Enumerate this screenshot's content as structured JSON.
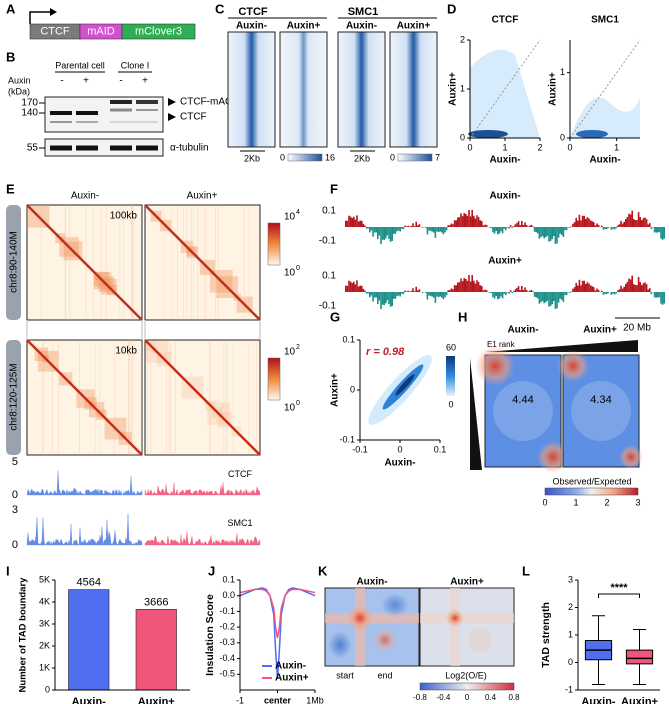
{
  "panel_labels": [
    "A",
    "B",
    "C",
    "D",
    "E",
    "F",
    "G",
    "H",
    "I",
    "J",
    "K",
    "L"
  ],
  "A": {
    "parts": [
      "CTCF",
      "mAID",
      "mClover3"
    ]
  },
  "B": {
    "groups": [
      "Parental cell",
      "Clone I"
    ],
    "auxin_label": "Auxin",
    "auxin": [
      "-",
      "+",
      "-",
      "+"
    ],
    "kda_label": "(kDa)",
    "markers": [
      "170",
      "140",
      "55"
    ],
    "bands": [
      "CTCF-mAC",
      "CTCF",
      "α-tubulin"
    ]
  },
  "C": {
    "proteins": [
      "CTCF",
      "SMC1"
    ],
    "conditions": [
      "Auxin-",
      "Auxin+",
      "Auxin-",
      "Auxin+"
    ],
    "scale": [
      "2Kb",
      "2Kb"
    ],
    "colorbars": [
      [
        "0",
        "16"
      ],
      [
        "0",
        "7"
      ]
    ]
  },
  "D": {
    "titles": [
      "CTCF",
      "SMC1"
    ],
    "y_label": "Auxin+",
    "x_label": "Auxin-",
    "plots": [
      {
        "xticks": [
          "0",
          "1",
          "2"
        ],
        "yticks": [
          "0",
          "1",
          "2"
        ]
      },
      {
        "xticks": [
          "0",
          "1"
        ],
        "yticks": [
          "0",
          "1"
        ]
      }
    ]
  },
  "E": {
    "conditions": [
      "Auxin-",
      "Auxin+"
    ],
    "resolutions": [
      "100kb",
      "10kb"
    ],
    "regions": [
      "chr8:90-140M",
      "chr8:120-125M"
    ],
    "colorbars": [
      {
        "base": "10",
        "top_exp": "4",
        "bottom_exp": "0"
      },
      {
        "base": "10",
        "top_exp": "2",
        "bottom_exp": "0"
      }
    ],
    "tracks": [
      {
        "name": "CTCF",
        "ticks": [
          "5",
          "0"
        ]
      },
      {
        "name": "SMC1",
        "ticks": [
          "3",
          "0"
        ]
      }
    ]
  },
  "F": {
    "tracks": [
      {
        "name": "Auxin-",
        "ticks": [
          "0.1",
          "-0.1"
        ]
      },
      {
        "name": "Auxin+",
        "ticks": [
          "0.1",
          "-0.1"
        ]
      }
    ],
    "scale": "20 Mb"
  },
  "G": {
    "r_label": "r = 0.98",
    "x_label": "Auxin-",
    "y_label": "Auxin+",
    "xticks": [
      "-0.1",
      "0",
      "0.1"
    ],
    "yticks": [
      "0.1",
      "0",
      "-0.1"
    ],
    "colorbar": [
      "60",
      "0"
    ]
  },
  "H": {
    "conditions": [
      "Auxin-",
      "Auxin+"
    ],
    "rank_label": "E1 rank",
    "strengths": [
      "4.44",
      "4.34"
    ],
    "colorbar_label": "Observed/Expected",
    "colorbar_ticks": [
      "0",
      "1",
      "2",
      "3"
    ]
  },
  "K": {
    "conditions": [
      "Auxin-",
      "Auxin+"
    ],
    "x_labels": [
      "start",
      "end"
    ],
    "colorbar_label": "Log2(O/E)",
    "colorbar_ticks": [
      "-0.8",
      "-0.4",
      "0",
      "0.4",
      "0.8"
    ]
  },
  "chart_data": [
    {
      "type": "bar",
      "y_label": "Number of TAD boundary",
      "categories": [
        "Auxin-",
        "Auxin+"
      ],
      "values": [
        4564,
        3666
      ],
      "colors": [
        "#4f6ef0",
        "#f0567a"
      ],
      "ylim": [
        0,
        5000
      ],
      "yticks": [
        0,
        {
          "value": 1000,
          "label": "1K"
        },
        {
          "value": 2000,
          "label": "2K"
        },
        {
          "value": 3000,
          "label": "3K"
        },
        {
          "value": 4000,
          "label": "4K"
        },
        {
          "value": 5000,
          "label": "5K"
        }
      ]
    },
    {
      "type": "line",
      "y_label": "Insulation Score",
      "x": [
        -1,
        -0.8,
        -0.6,
        -0.4,
        -0.3,
        -0.2,
        -0.1,
        -0.05,
        0,
        0.05,
        0.1,
        0.2,
        0.3,
        0.4,
        0.6,
        0.8,
        1
      ],
      "xlim": [
        -1,
        1
      ],
      "xticks": [
        -1,
        {
          "value": 0,
          "label": "center"
        },
        {
          "value": 1,
          "label": "1Mb"
        }
      ],
      "ylim": [
        -0.6,
        0.1
      ],
      "yticks": [
        0.1,
        {
          "value": 0,
          "label": "0.0"
        },
        -0.1,
        -0.2,
        -0.3,
        -0.4,
        -0.5
      ],
      "series": [
        {
          "name": "Auxin-",
          "color": "#4f6ef0",
          "values": [
            0.0,
            0.02,
            0.04,
            0.05,
            0.04,
            0.0,
            -0.12,
            -0.35,
            -0.53,
            -0.35,
            -0.12,
            0.0,
            0.04,
            0.05,
            0.04,
            0.02,
            0.0
          ]
        },
        {
          "name": "Auxin+",
          "color": "#f0567a",
          "values": [
            0.02,
            0.03,
            0.04,
            0.04,
            0.03,
            0.0,
            -0.08,
            -0.2,
            -0.27,
            -0.2,
            -0.08,
            0.0,
            0.03,
            0.04,
            0.04,
            0.03,
            0.02
          ]
        }
      ]
    },
    {
      "type": "box",
      "y_label": "TAD strength",
      "categories": [
        "Auxin-",
        "Auxin+"
      ],
      "colors": [
        "#4f6ef0",
        "#f0567a"
      ],
      "stats": [
        {
          "min": -0.8,
          "q1": 0.1,
          "median": 0.45,
          "q3": 0.8,
          "max": 1.7
        },
        {
          "min": -0.8,
          "q1": -0.05,
          "median": 0.15,
          "q3": 0.45,
          "max": 1.2
        }
      ],
      "ylim": [
        -1,
        3
      ],
      "yticks": [
        -1,
        0,
        1,
        2,
        3
      ],
      "annotation": "****"
    }
  ]
}
